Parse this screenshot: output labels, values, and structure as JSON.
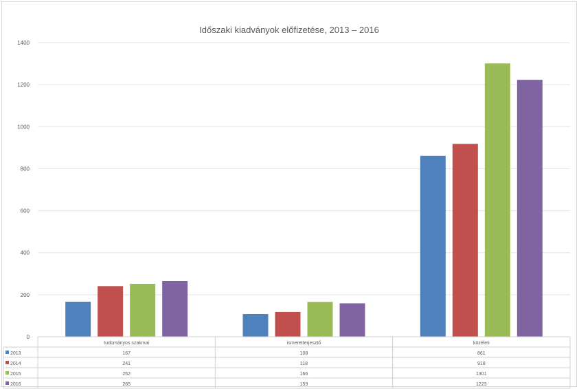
{
  "chart_data": {
    "type": "bar",
    "title": "Időszaki kiadványok előfizetése, 2013 – 2016",
    "categories": [
      "tudományos szakmai",
      "ismeretterjesztő",
      "közéleti"
    ],
    "series": [
      {
        "name": "2013",
        "color": "#4f81bd",
        "values": [
          167,
          108,
          861
        ]
      },
      {
        "name": "2014",
        "color": "#c0504d",
        "values": [
          241,
          118,
          918
        ]
      },
      {
        "name": "2015",
        "color": "#9bbb59",
        "values": [
          252,
          166,
          1301
        ]
      },
      {
        "name": "2016",
        "color": "#8064a2",
        "values": [
          265,
          159,
          1223
        ]
      }
    ],
    "table_values": [
      [
        "167",
        "108",
        "861"
      ],
      [
        "241",
        "118",
        "918"
      ],
      [
        "252",
        "166",
        "1301"
      ],
      [
        "265",
        "159",
        "1223"
      ]
    ],
    "ylim": [
      0,
      1400
    ],
    "yticks": [
      "0",
      "200",
      "400",
      "600",
      "800",
      "1000",
      "1200",
      "1400"
    ],
    "grid": true,
    "legend": "data-table"
  }
}
